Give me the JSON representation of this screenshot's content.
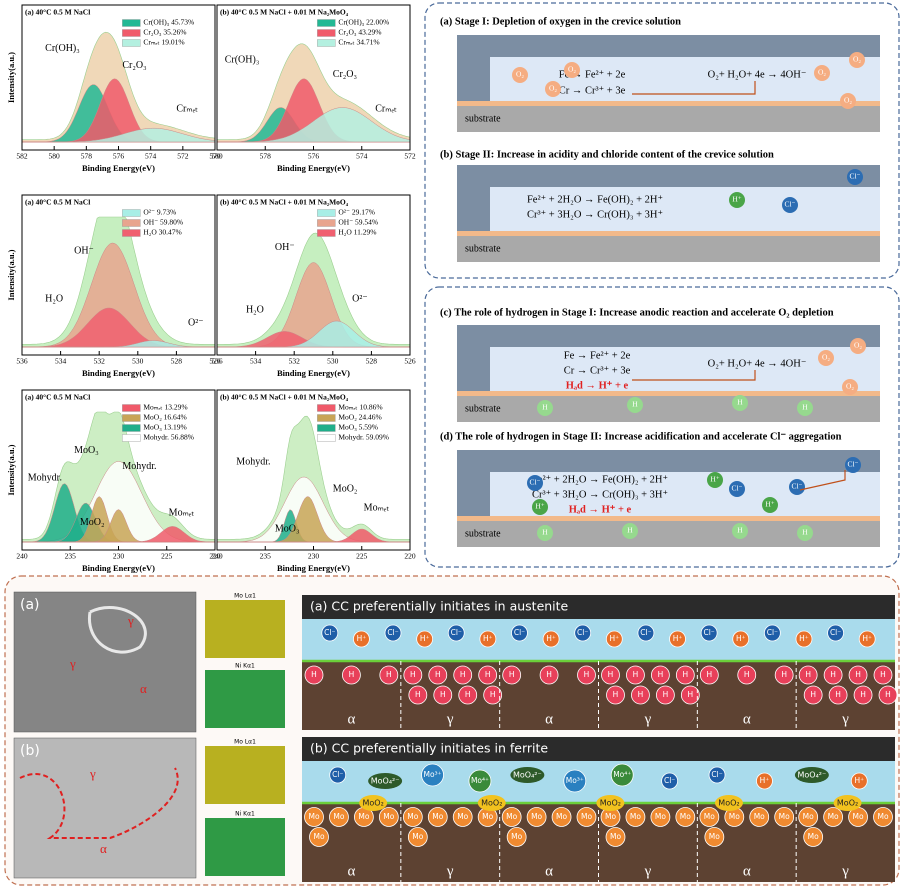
{
  "xps_panels": [
    {
      "title": "(a) 40°C 0.5 M NaCl",
      "ylabel": "Intensity(a.u.)",
      "xlabel": "Binding Energy(eV)",
      "xticks": [
        582,
        580,
        578,
        576,
        574,
        572,
        570
      ],
      "legend": [
        {
          "text": "Cr(OH)₃ 45.73%",
          "color": "#22b894"
        },
        {
          "text": "Cr₂O₃ 35.26%",
          "color": "#f05a6a"
        },
        {
          "text": "Crₘₑₜ 19.01%",
          "color": "#b4f0e0"
        }
      ],
      "annotations": [
        "Cr(OH)₃",
        "Cr₂O₃",
        "Crₘₑₜ"
      ]
    },
    {
      "title": "(b) 40°C 0.5 M NaCl + 0.01 M Na₂MoO₄",
      "xlabel": "Binding Energy(eV)",
      "xticks": [
        580,
        578,
        576,
        574,
        572
      ],
      "legend": [
        {
          "text": "Cr(OH)₃ 22.00%",
          "color": "#22b894"
        },
        {
          "text": "Cr₂O₃ 43.29%",
          "color": "#f05a6a"
        },
        {
          "text": "Crₘₑₜ 34.71%",
          "color": "#b4f0e0"
        }
      ],
      "annotations": [
        "Cr(OH)₃",
        "Cr₂O₃",
        "Crₘₑₜ"
      ]
    },
    {
      "title": "(a) 40°C 0.5 M NaCl",
      "ylabel": "Intensity(a.u.)",
      "xlabel": "Binding Energy(eV)",
      "xticks": [
        536,
        534,
        532,
        530,
        528,
        526
      ],
      "legend": [
        {
          "text": "O²⁻ 9.73%",
          "color": "#a8eee6"
        },
        {
          "text": "OH⁻ 59.80%",
          "color": "#e8a48e"
        },
        {
          "text": "H₂O 30.47%",
          "color": "#f06070"
        }
      ],
      "annotations": [
        "OH⁻",
        "H₂O",
        "O²⁻"
      ]
    },
    {
      "title": "(b) 40°C 0.5 M NaCl + 0.01 M Na₂MoO₄",
      "xlabel": "Binding Energy(eV)",
      "xticks": [
        536,
        534,
        532,
        530,
        528,
        526
      ],
      "legend": [
        {
          "text": "O²⁻ 29.17%",
          "color": "#a8eee6"
        },
        {
          "text": "OH⁻ 59.54%",
          "color": "#e8a48e"
        },
        {
          "text": "H₂O 11.29%",
          "color": "#f06070"
        }
      ],
      "annotations": [
        "OH⁻",
        "H₂O",
        "O²⁻"
      ]
    },
    {
      "title": "(a) 40°C 0.5 M NaCl",
      "ylabel": "Intensity(a.u.)",
      "xlabel": "Binding Energy(eV)",
      "xticks": [
        240,
        235,
        230,
        225,
        220
      ],
      "legend": [
        {
          "text": "Moₘₑₜ 13.29%",
          "color": "#f05a6a"
        },
        {
          "text": "MoO₂ 16.64%",
          "color": "#c8a456"
        },
        {
          "text": "MoO₃ 13.19%",
          "color": "#1fae8a"
        },
        {
          "text": "Mohydr. 56.88%",
          "color": "#ffffff"
        }
      ],
      "annotations": [
        "MoO₃",
        "Mohydr.",
        "Mohydr.",
        "MoO₂",
        "Moₘₑₜ"
      ]
    },
    {
      "title": "(b) 40°C 0.5 M NaCl + 0.01 M Na₂MoO₄",
      "xlabel": "Binding Energy(eV)",
      "xticks": [
        240,
        235,
        230,
        225,
        220
      ],
      "legend": [
        {
          "text": "Moₘₑₜ 10.86%",
          "color": "#f05a6a"
        },
        {
          "text": "MoO₂ 24.46%",
          "color": "#c8a456"
        },
        {
          "text": "MoO₃ 5.59%",
          "color": "#1fae8a"
        },
        {
          "text": "Mohydr. 59.09%",
          "color": "#ffffff"
        }
      ],
      "annotations": [
        "Mohydr.",
        "MoO₂",
        "MoO₃",
        "Moₘₑₜ"
      ]
    }
  ],
  "mechanism": [
    {
      "title": "(a) Stage I: Depletion of oxygen in the crevice solution",
      "equations": [
        "Fe → Fe²⁺ + 2e",
        "Cr → Cr³⁺ + 3e",
        "O₂+ H₂O+ 4e → 4OH⁻"
      ],
      "species": [
        "O₂",
        "O₂",
        "O₂",
        "O₂",
        "O₂",
        "O₂"
      ],
      "substrate": "substrate"
    },
    {
      "title": "(b) Stage II: Increase in acidity and chloride content of the crevice solution",
      "equations": [
        "Fe²⁺ + 2H₂O → Fe(OH)₂ + 2H⁺",
        "Cr³⁺ + 3H₂O → Cr(OH)₃ + 3H⁺"
      ],
      "species": [
        "H⁺",
        "Cl⁻",
        "Cl⁻"
      ],
      "substrate": "substrate"
    },
    {
      "title": "(c) The role of hydrogen in Stage I: Increase anodic reaction and accelerate O₂ depletion",
      "equations": [
        "Fe → Fe²⁺ + 2e",
        "Cr → Cr³⁺ + 3e",
        "Hₐd → H⁺ + e",
        "O₂+ H₂O+ 4e → 4OH⁻"
      ],
      "species": [
        "O₂",
        "O₂",
        "O₂",
        "H",
        "H",
        "H",
        "H"
      ],
      "substrate": "substrate"
    },
    {
      "title": "(d) The role of hydrogen in Stage II: Increase acidification and accelerate Cl⁻ aggregation",
      "equations": [
        "Fe²⁺ + 2H₂O → Fe(OH)₂ + 2H⁺",
        "Cr³⁺ + 3H₂O → Cr(OH)₃ + 3H⁺",
        "Hₐd → H⁺ + e"
      ],
      "species": [
        "Cl⁻",
        "Cl⁻",
        "Cl⁻",
        "Cl⁻",
        "H⁺",
        "H⁺",
        "H⁺",
        "H",
        "H",
        "H",
        "H"
      ],
      "substrate": "substrate"
    }
  ],
  "micrographs": [
    {
      "label": "(a)",
      "phases": [
        "γ",
        "γ",
        "α"
      ],
      "maps": [
        "Mo Lα1",
        "Ni Kα1"
      ]
    },
    {
      "label": "(b)",
      "phases": [
        "γ",
        "α"
      ],
      "maps": [
        "Mo Lα1",
        "Ni Kα1"
      ]
    }
  ],
  "schematics": [
    {
      "title": "(a) CC preferentially initiates in austenite",
      "solution": [
        "Cl⁻",
        "H⁺",
        "Cl⁻",
        "H⁺",
        "Cl⁻",
        "H⁺",
        "Cl⁻",
        "H⁺",
        "Cl⁻",
        "H⁺",
        "Cl⁻",
        "H⁺",
        "Cl⁻",
        "H⁺",
        "Cl⁻",
        "H⁺",
        "Cl⁻",
        "H⁺"
      ],
      "surface": [],
      "regions": [
        {
          "phase": "α",
          "particles": [
            "H",
            "H",
            "H"
          ]
        },
        {
          "phase": "γ",
          "particles": [
            "H",
            "H",
            "H",
            "H",
            "H",
            "H",
            "H",
            "H"
          ]
        },
        {
          "phase": "α",
          "particles": [
            "H",
            "H",
            "H"
          ]
        },
        {
          "phase": "γ",
          "particles": [
            "H",
            "H",
            "H",
            "H",
            "H",
            "H",
            "H",
            "H"
          ]
        },
        {
          "phase": "α",
          "particles": [
            "H",
            "H",
            "H"
          ]
        },
        {
          "phase": "γ",
          "particles": [
            "H",
            "H",
            "H",
            "H",
            "H",
            "H",
            "H",
            "H"
          ]
        }
      ]
    },
    {
      "title": "(b) CC preferentially initiates in ferrite",
      "solution": [
        "Cl⁻",
        "MoO₄²⁻",
        "Mo³⁺",
        "Mo⁴⁺",
        "MoO₄²⁻",
        "Mo³⁺",
        "Mo⁴⁺",
        "Cl⁻",
        "Cl⁻",
        "H⁺",
        "MoO₄²⁻",
        "H⁺"
      ],
      "surface": [
        "MoO₂",
        "MoO₂",
        "MoO₂",
        "MoO₂",
        "MoO₂"
      ],
      "regions": [
        {
          "phase": "α",
          "particles": [
            "Mo",
            "Mo",
            "Mo",
            "Mo",
            "Mo"
          ]
        },
        {
          "phase": "γ",
          "particles": [
            "Mo",
            "Mo",
            "Mo",
            "Mo",
            "Mo"
          ]
        },
        {
          "phase": "α",
          "particles": [
            "Mo",
            "Mo",
            "Mo",
            "Mo",
            "Mo"
          ]
        },
        {
          "phase": "γ",
          "particles": [
            "Mo",
            "Mo",
            "Mo",
            "Mo",
            "Mo"
          ]
        },
        {
          "phase": "α",
          "particles": [
            "Mo",
            "Mo",
            "Mo",
            "Mo",
            "Mo"
          ]
        },
        {
          "phase": "γ",
          "particles": [
            "Mo",
            "Mo",
            "Mo",
            "Mo",
            "Mo"
          ]
        }
      ]
    }
  ]
}
